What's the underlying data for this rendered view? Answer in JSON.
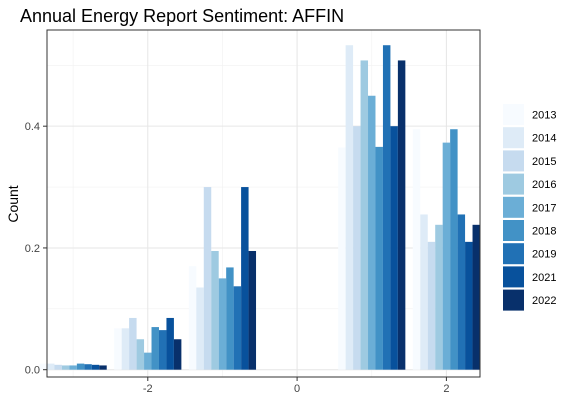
{
  "chart_data": {
    "type": "bar",
    "title": "Annual Energy Report Sentiment: AFFIN",
    "xlabel": "",
    "ylabel": "Count",
    "xlim": [
      -3.35,
      2.45
    ],
    "ylim": [
      -0.012,
      0.558
    ],
    "x_ticks": [
      -2,
      0,
      2
    ],
    "y_ticks": [
      0.0,
      0.2,
      0.4
    ],
    "y_tick_labels": [
      "0.0",
      "0.2",
      "0.4"
    ],
    "grid": true,
    "legend_position": "right",
    "bar_width": 0.9,
    "series": [
      {
        "name": "2013",
        "color": "#f7fbff",
        "values": [
          0.01,
          0.068,
          0.17,
          0.0,
          0.365,
          0.395
        ]
      },
      {
        "name": "2014",
        "color": "#deebf7",
        "values": [
          0.01,
          0.068,
          0.135,
          0.0,
          0.533,
          0.255
        ]
      },
      {
        "name": "2015",
        "color": "#c6dbef",
        "values": [
          0.008,
          0.085,
          0.3,
          0.0,
          0.4,
          0.21
        ]
      },
      {
        "name": "2016",
        "color": "#9ecae1",
        "values": [
          0.007,
          0.05,
          0.195,
          0.0,
          0.508,
          0.238
        ]
      },
      {
        "name": "2017",
        "color": "#6baed6",
        "values": [
          0.007,
          0.028,
          0.15,
          0.0,
          0.45,
          0.373
        ]
      },
      {
        "name": "2018",
        "color": "#4292c6",
        "values": [
          0.01,
          0.07,
          0.168,
          0.0,
          0.366,
          0.395
        ]
      },
      {
        "name": "2019",
        "color": "#2171b5",
        "values": [
          0.009,
          0.065,
          0.137,
          0.0,
          0.533,
          0.255
        ]
      },
      {
        "name": "2021",
        "color": "#08519c",
        "values": [
          0.008,
          0.085,
          0.3,
          0.0,
          0.4,
          0.21
        ]
      },
      {
        "name": "2022",
        "color": "#08306b",
        "values": [
          0.007,
          0.05,
          0.195,
          0.0,
          0.508,
          0.238
        ]
      }
    ],
    "x": [
      -3,
      -2,
      -1,
      0,
      1,
      2
    ]
  }
}
